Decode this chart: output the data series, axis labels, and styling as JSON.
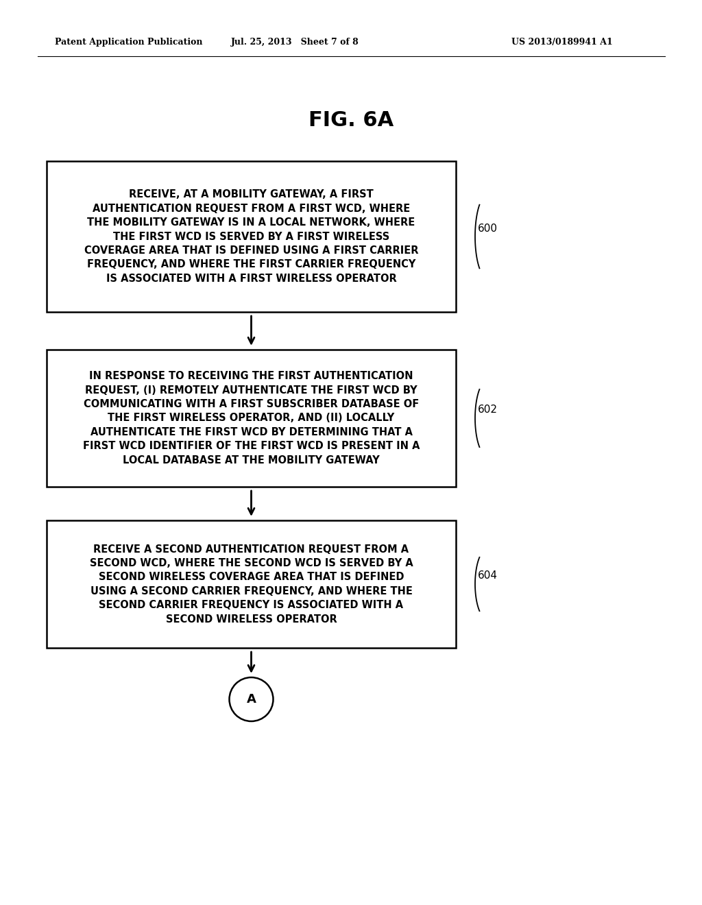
{
  "title": "FIG. 6A",
  "header_left": "Patent Application Publication",
  "header_mid": "Jul. 25, 2013   Sheet 7 of 8",
  "header_right": "US 2013/0189941 A1",
  "boxes": [
    {
      "id": "600",
      "label": "RECEIVE, AT A MOBILITY GATEWAY, A FIRST\nAUTHENTICATION REQUEST FROM A FIRST WCD, WHERE\nTHE MOBILITY GATEWAY IS IN A LOCAL NETWORK, WHERE\nTHE FIRST WCD IS SERVED BY A FIRST WIRELESS\nCOVERAGE AREA THAT IS DEFINED USING A FIRST CARRIER\nFREQUENCY, AND WHERE THE FIRST CARRIER FREQUENCY\nIS ASSOCIATED WITH A FIRST WIRELESS OPERATOR",
      "ref": "600"
    },
    {
      "id": "602",
      "label": "IN RESPONSE TO RECEIVING THE FIRST AUTHENTICATION\nREQUEST, (I) REMOTELY AUTHENTICATE THE FIRST WCD BY\nCOMMUNICATING WITH A FIRST SUBSCRIBER DATABASE OF\nTHE FIRST WIRELESS OPERATOR, AND (II) LOCALLY\nAUTHENTICATE THE FIRST WCD BY DETERMINING THAT A\nFIRST WCD IDENTIFIER OF THE FIRST WCD IS PRESENT IN A\nLOCAL DATABASE AT THE MOBILITY GATEWAY",
      "ref": "602"
    },
    {
      "id": "604",
      "label": "RECEIVE A SECOND AUTHENTICATION REQUEST FROM A\nSECOND WCD, WHERE THE SECOND WCD IS SERVED BY A\nSECOND WIRELESS COVERAGE AREA THAT IS DEFINED\nUSING A SECOND CARRIER FREQUENCY, AND WHERE THE\nSECOND CARRIER FREQUENCY IS ASSOCIATED WITH A\nSECOND WIRELESS OPERATOR",
      "ref": "604"
    }
  ],
  "circle_label": "A",
  "bg_color": "#ffffff",
  "text_color": "#000000",
  "box_edge_color": "#000000",
  "font_size_box": 10.5,
  "font_size_title": 22,
  "font_size_header": 9,
  "font_size_ref": 11
}
